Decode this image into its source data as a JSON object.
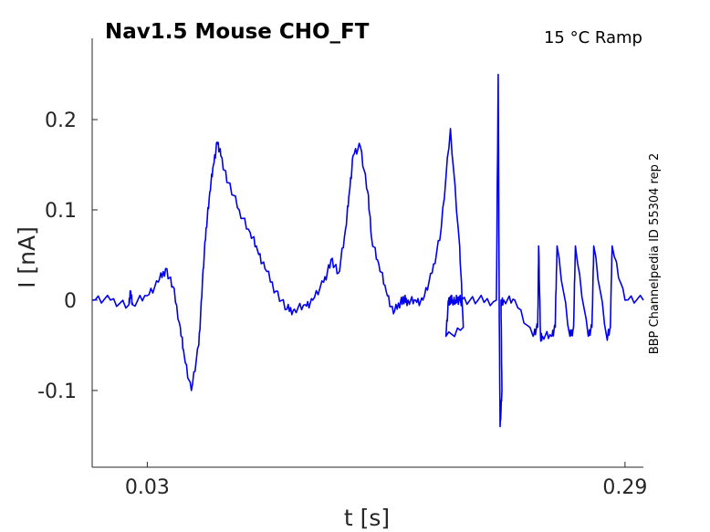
{
  "chart_data": {
    "type": "line",
    "title": "Nav1.5  Mouse  CHO_FT",
    "subtitle": "15 °C  Ramp",
    "side_note": "BBP Channelpedia ID 55304 rep 2",
    "xlabel": "t [s]",
    "ylabel": "I [nA]",
    "xlim": [
      0.0,
      0.3
    ],
    "ylim": [
      -0.185,
      0.29
    ],
    "x_ticks": [
      0.03,
      0.29
    ],
    "x_tick_labels": [
      "0.03",
      "0.29"
    ],
    "y_ticks": [
      0.2,
      0.1,
      0,
      -0.1
    ],
    "y_tick_labels": [
      "0.2",
      "0.1",
      "0",
      "-0.1"
    ],
    "grid": false,
    "legend": "none",
    "line_color": "#0000ee",
    "series": [
      {
        "x": [
          0.0,
          0.01,
          0.02,
          0.021,
          0.022,
          0.03,
          0.036,
          0.04,
          0.044,
          0.048,
          0.05,
          0.054,
          0.058,
          0.06,
          0.062,
          0.064,
          0.066,
          0.068,
          0.07,
          0.074,
          0.08,
          0.086,
          0.09,
          0.094,
          0.1,
          0.106,
          0.11,
          0.116,
          0.12,
          0.126,
          0.13,
          0.134,
          0.138,
          0.14,
          0.142,
          0.146,
          0.15,
          0.152,
          0.156,
          0.16,
          0.164,
          0.168,
          0.17,
          0.172,
          0.176,
          0.18,
          0.185,
          0.19,
          0.195,
          0.2,
          0.202,
          0.1925,
          0.194,
          0.195,
          0.196,
          0.198,
          0.1985,
          0.2,
          0.201,
          0.21,
          0.22,
          0.221,
          0.2215,
          0.222,
          0.223,
          0.2225,
          0.224,
          0.23,
          0.24,
          0.2425,
          0.243,
          0.244,
          0.245,
          0.25,
          0.252,
          0.253,
          0.26,
          0.262,
          0.263,
          0.27,
          0.272,
          0.273,
          0.28,
          0.282,
          0.283,
          0.29,
          0.3
        ],
        "y": [
          0.0,
          0.0,
          -0.005,
          0.01,
          -0.005,
          0.005,
          0.02,
          0.035,
          0.015,
          -0.03,
          -0.06,
          -0.1,
          -0.05,
          0.02,
          0.08,
          0.12,
          0.15,
          0.175,
          0.16,
          0.13,
          0.1,
          0.075,
          0.055,
          0.035,
          0.01,
          -0.01,
          -0.01,
          -0.005,
          0.0,
          0.02,
          0.045,
          0.03,
          0.08,
          0.12,
          0.16,
          0.17,
          0.12,
          0.07,
          0.04,
          0.01,
          -0.015,
          0.0,
          0.0,
          0.0,
          0.0,
          0.0,
          0.03,
          0.08,
          0.19,
          0.06,
          -0.03,
          -0.04,
          0.0,
          0.0,
          0.0,
          0.0,
          0.0,
          0.0,
          0.0,
          0.0,
          0.0,
          0.25,
          0.0,
          -0.14,
          -0.1,
          0.0,
          0.0,
          0.0,
          -0.04,
          -0.03,
          0.06,
          -0.04,
          -0.04,
          -0.04,
          -0.03,
          0.06,
          -0.04,
          -0.03,
          0.06,
          -0.04,
          -0.03,
          0.06,
          -0.04,
          -0.03,
          0.06,
          0.0,
          0.0
        ]
      }
    ]
  }
}
